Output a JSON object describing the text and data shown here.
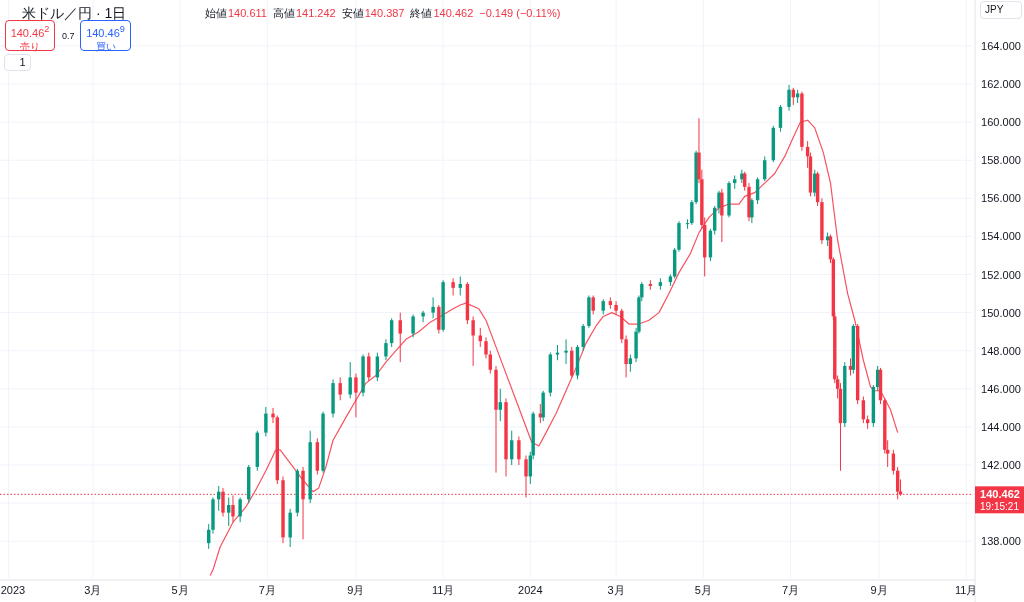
{
  "chart_data": {
    "type": "candlestick",
    "title": "米ドル／円 · 1日",
    "annotations": [
      "始値",
      "140.611",
      "高値",
      "141.242",
      "安値",
      "140.387",
      "終値",
      "140.462",
      "−0.149 (−0.11%)",
      "140.46$^{2}$",
      "売り",
      "0.7",
      "140.46$^{9}$",
      "買い",
      "1",
      "JPY",
      "19:15:21"
    ],
    "x": [
      "2023-05-21",
      "2023-05-24",
      "2023-05-28",
      "2023-05-31",
      "2023-06-04",
      "2023-06-07",
      "2023-06-12",
      "2023-06-18",
      "2023-06-24",
      "2023-06-30",
      "2023-07-05",
      "2023-07-08",
      "2023-07-12",
      "2023-07-17",
      "2023-07-22",
      "2023-07-26",
      "2023-07-31",
      "2023-08-05",
      "2023-08-09",
      "2023-08-16",
      "2023-08-21",
      "2023-08-28",
      "2023-09-01",
      "2023-09-06",
      "2023-09-10",
      "2023-09-16",
      "2023-09-22",
      "2023-09-26",
      "2023-10-02",
      "2023-10-11",
      "2023-10-18",
      "2023-10-25",
      "2023-10-29",
      "2023-11-01",
      "2023-11-08",
      "2023-11-13",
      "2023-11-18",
      "2023-11-22",
      "2023-11-27",
      "2023-12-01",
      "2023-12-04",
      "2023-12-08",
      "2023-12-11",
      "2023-12-15",
      "2023-12-19",
      "2023-12-24",
      "2023-12-29",
      "2024-01-01",
      "2024-01-03",
      "2024-01-08",
      "2024-01-10",
      "2024-01-15",
      "2024-01-20",
      "2024-01-26",
      "2024-01-30",
      "2024-02-03",
      "2024-02-07",
      "2024-02-11",
      "2024-02-14",
      "2024-02-21",
      "2024-02-26",
      "2024-03-01",
      "2024-03-05",
      "2024-03-08",
      "2024-03-11",
      "2024-03-15",
      "2024-03-17",
      "2024-03-19",
      "2024-03-25",
      "2024-04-01",
      "2024-04-08",
      "2024-04-11",
      "2024-04-14",
      "2024-04-20",
      "2024-04-23",
      "2024-04-26",
      "2024-04-28",
      "2024-04-30",
      "2024-05-02",
      "2024-05-06",
      "2024-05-09",
      "2024-05-12",
      "2024-05-14",
      "2024-05-19",
      "2024-05-23",
      "2024-05-28",
      "2024-05-30",
      "2024-06-02",
      "2024-06-04",
      "2024-06-08",
      "2024-06-13",
      "2024-06-19",
      "2024-06-24",
      "2024-06-30",
      "2024-07-03",
      "2024-07-06",
      "2024-07-09",
      "2024-07-13",
      "2024-07-15",
      "2024-07-18",
      "2024-07-20",
      "2024-07-23",
      "2024-07-27",
      "2024-07-29",
      "2024-07-31",
      "2024-08-01",
      "2024-08-03",
      "2024-08-05",
      "2024-08-08",
      "2024-08-12",
      "2024-08-14",
      "2024-08-17",
      "2024-08-21",
      "2024-08-24",
      "2024-08-28",
      "2024-08-31",
      "2024-09-02",
      "2024-09-05",
      "2024-09-07",
      "2024-09-11",
      "2024-09-14",
      "2024-09-16"
    ],
    "ohlc": [
      [
        137.9,
        138.9,
        137.6,
        138.6
      ],
      [
        138.6,
        140.3,
        138.4,
        140.2
      ],
      [
        140.2,
        140.9,
        139.6,
        140.6
      ],
      [
        140.6,
        140.8,
        139.3,
        139.5
      ],
      [
        139.5,
        140.3,
        138.8,
        139.9
      ],
      [
        139.9,
        140.4,
        139.0,
        139.3
      ],
      [
        139.3,
        140.3,
        139.0,
        140.2
      ],
      [
        140.2,
        142.0,
        140.0,
        141.9
      ],
      [
        141.9,
        143.8,
        141.7,
        143.7
      ],
      [
        143.7,
        145.05,
        143.5,
        144.7
      ],
      [
        144.7,
        145.0,
        144.2,
        144.5
      ],
      [
        144.5,
        144.6,
        141.0,
        141.2
      ],
      [
        141.2,
        141.4,
        137.9,
        138.2
      ],
      [
        138.2,
        139.7,
        137.7,
        139.5
      ],
      [
        139.5,
        141.8,
        139.3,
        141.7
      ],
      [
        141.7,
        141.9,
        138.1,
        140.2
      ],
      [
        140.2,
        143.8,
        140.0,
        143.2
      ],
      [
        143.2,
        143.4,
        141.5,
        141.7
      ],
      [
        141.7,
        144.8,
        141.6,
        144.7
      ],
      [
        144.7,
        146.5,
        144.5,
        146.3
      ],
      [
        146.3,
        146.6,
        145.4,
        145.7
      ],
      [
        145.7,
        147.4,
        145.5,
        146.6
      ],
      [
        146.6,
        146.8,
        144.5,
        145.8
      ],
      [
        145.8,
        147.8,
        145.6,
        147.7
      ],
      [
        147.7,
        147.9,
        146.4,
        146.6
      ],
      [
        146.6,
        147.9,
        146.4,
        147.7
      ],
      [
        147.7,
        148.6,
        147.5,
        148.4
      ],
      [
        148.4,
        149.7,
        148.2,
        149.6
      ],
      [
        149.6,
        150.0,
        147.4,
        148.9
      ],
      [
        148.9,
        149.9,
        148.7,
        149.8
      ],
      [
        149.8,
        150.1,
        149.5,
        150.0
      ],
      [
        150.0,
        150.8,
        149.7,
        150.3
      ],
      [
        150.3,
        150.4,
        148.9,
        149.1
      ],
      [
        149.1,
        151.7,
        149.0,
        151.6
      ],
      [
        151.6,
        151.8,
        150.9,
        151.3
      ],
      [
        151.3,
        151.9,
        150.9,
        151.5
      ],
      [
        151.5,
        151.6,
        149.4,
        149.6
      ],
      [
        149.6,
        149.8,
        147.2,
        148.8
      ],
      [
        148.8,
        149.2,
        148.2,
        148.5
      ],
      [
        148.5,
        148.7,
        147.6,
        147.8
      ],
      [
        147.8,
        148.0,
        146.8,
        147.0
      ],
      [
        147.0,
        147.2,
        141.6,
        144.9
      ],
      [
        144.9,
        146.0,
        144.3,
        145.3
      ],
      [
        145.3,
        145.5,
        141.4,
        142.3
      ],
      [
        142.3,
        143.8,
        142.0,
        143.3
      ],
      [
        143.3,
        143.5,
        142.0,
        142.3
      ],
      [
        142.3,
        142.5,
        140.3,
        141.4
      ],
      [
        141.4,
        142.7,
        141.0,
        142.5
      ],
      [
        142.5,
        144.8,
        142.3,
        144.7
      ],
      [
        144.7,
        145.2,
        144.2,
        144.5
      ],
      [
        144.5,
        145.9,
        144.3,
        145.8
      ],
      [
        145.8,
        147.9,
        145.6,
        147.8
      ],
      [
        147.8,
        148.3,
        147.5,
        147.9
      ],
      [
        147.9,
        148.6,
        147.3,
        148.0
      ],
      [
        148.0,
        148.2,
        146.6,
        146.7
      ],
      [
        146.7,
        148.3,
        146.5,
        148.2
      ],
      [
        148.2,
        149.4,
        148.0,
        149.3
      ],
      [
        149.3,
        150.9,
        149.2,
        150.8
      ],
      [
        150.8,
        150.9,
        149.9,
        150.1
      ],
      [
        150.1,
        150.7,
        149.9,
        150.6
      ],
      [
        150.6,
        150.8,
        150.2,
        150.4
      ],
      [
        150.4,
        150.6,
        149.9,
        150.1
      ],
      [
        150.1,
        150.2,
        148.4,
        148.6
      ],
      [
        148.6,
        148.8,
        146.6,
        147.3
      ],
      [
        147.3,
        147.8,
        146.9,
        147.6
      ],
      [
        147.6,
        149.2,
        147.4,
        149.0
      ],
      [
        149.0,
        150.9,
        148.9,
        150.8
      ],
      [
        150.8,
        151.6,
        150.6,
        151.5
      ],
      [
        151.5,
        151.7,
        151.2,
        151.4
      ],
      [
        151.4,
        151.8,
        151.2,
        151.6
      ],
      [
        151.6,
        152.0,
        151.4,
        151.9
      ],
      [
        151.9,
        153.4,
        151.8,
        153.3
      ],
      [
        153.3,
        154.8,
        153.2,
        154.7
      ],
      [
        154.7,
        154.9,
        154.4,
        154.7
      ],
      [
        154.7,
        155.9,
        154.6,
        155.8
      ],
      [
        155.8,
        158.5,
        155.7,
        158.4
      ],
      [
        158.4,
        160.2,
        156.8,
        157.0
      ],
      [
        157.0,
        157.5,
        154.4,
        154.6
      ],
      [
        154.6,
        155.0,
        151.9,
        152.9
      ],
      [
        152.9,
        154.4,
        152.7,
        154.3
      ],
      [
        154.3,
        155.6,
        154.1,
        155.5
      ],
      [
        155.5,
        156.4,
        155.2,
        156.3
      ],
      [
        156.3,
        156.5,
        153.7,
        155.1
      ],
      [
        155.1,
        156.9,
        155.0,
        156.8
      ],
      [
        156.8,
        157.2,
        156.5,
        157.0
      ],
      [
        157.0,
        157.5,
        156.8,
        157.3
      ],
      [
        157.3,
        157.4,
        156.4,
        156.6
      ],
      [
        156.6,
        156.8,
        154.8,
        155.0
      ],
      [
        155.0,
        156.0,
        154.7,
        155.9
      ],
      [
        155.9,
        157.1,
        155.7,
        157.0
      ],
      [
        157.0,
        158.2,
        156.9,
        158.0
      ],
      [
        158.0,
        159.8,
        157.9,
        159.7
      ],
      [
        159.7,
        160.9,
        159.5,
        160.8
      ],
      [
        160.8,
        161.95,
        160.6,
        161.7
      ],
      [
        161.7,
        161.8,
        160.9,
        161.3
      ],
      [
        161.3,
        161.7,
        161.0,
        161.5
      ],
      [
        161.5,
        161.6,
        158.5,
        158.7
      ],
      [
        158.7,
        159.0,
        157.6,
        158.2
      ],
      [
        158.2,
        158.4,
        156.1,
        156.3
      ],
      [
        156.3,
        157.5,
        156.1,
        157.3
      ],
      [
        157.3,
        157.4,
        155.6,
        155.8
      ],
      [
        155.8,
        156.0,
        153.6,
        153.8
      ],
      [
        153.8,
        154.2,
        153.5,
        154.0
      ],
      [
        154.0,
        154.1,
        152.6,
        152.8
      ],
      [
        152.8,
        152.9,
        149.6,
        149.8
      ],
      [
        149.8,
        150.0,
        146.3,
        146.5
      ],
      [
        146.5,
        146.7,
        145.5,
        146.0
      ],
      [
        146.0,
        146.3,
        141.7,
        144.2
      ],
      [
        144.2,
        147.4,
        144.0,
        147.2
      ],
      [
        147.2,
        147.6,
        146.7,
        147.0
      ],
      [
        147.0,
        149.4,
        146.8,
        149.3
      ],
      [
        149.3,
        149.4,
        145.2,
        145.4
      ],
      [
        145.4,
        145.6,
        144.2,
        144.4
      ],
      [
        144.4,
        144.6,
        143.9,
        144.2
      ],
      [
        144.2,
        146.2,
        144.0,
        146.1
      ],
      [
        146.1,
        147.2,
        145.9,
        147.0
      ],
      [
        147.0,
        147.1,
        145.2,
        145.4
      ],
      [
        145.4,
        145.5,
        142.6,
        142.8
      ],
      [
        142.8,
        143.3,
        141.9,
        142.6
      ],
      [
        142.6,
        142.8,
        141.5,
        141.7
      ],
      [
        141.7,
        141.9,
        140.2,
        140.6
      ],
      [
        140.611,
        141.242,
        140.387,
        140.462
      ]
    ],
    "series": [
      {
        "type": "line",
        "color": "#f7525f",
        "x": [
          "2023-05-22",
          "2023-05-24",
          "2023-05-29",
          "2023-06-07",
          "2023-06-16",
          "2023-06-23",
          "2023-06-30",
          "2023-07-07",
          "2023-07-10",
          "2023-07-19",
          "2023-07-26",
          "2023-08-02",
          "2023-08-06",
          "2023-08-11",
          "2023-08-16",
          "2023-08-25",
          "2023-09-01",
          "2023-09-08",
          "2023-09-15",
          "2023-09-22",
          "2023-09-29",
          "2023-10-06",
          "2023-10-15",
          "2023-10-23",
          "2023-10-30",
          "2023-11-08",
          "2023-11-13",
          "2023-11-17",
          "2023-11-26",
          "2023-12-01",
          "2023-12-08",
          "2023-12-15",
          "2023-12-22",
          "2023-12-29",
          "2024-01-02",
          "2024-01-07",
          "2024-01-12",
          "2024-01-19",
          "2024-01-26",
          "2024-02-02",
          "2024-02-09",
          "2024-02-16",
          "2024-02-21",
          "2024-02-27",
          "2024-03-04",
          "2024-03-10",
          "2024-03-17",
          "2024-03-24",
          "2024-03-31",
          "2024-04-07",
          "2024-04-14",
          "2024-04-22",
          "2024-04-28",
          "2024-05-05",
          "2024-05-12",
          "2024-05-19",
          "2024-05-26",
          "2024-05-30",
          "2024-06-06",
          "2024-06-13",
          "2024-06-20",
          "2024-06-27",
          "2024-07-03",
          "2024-07-08",
          "2024-07-13",
          "2024-07-18",
          "2024-07-24",
          "2024-07-29",
          "2024-08-03",
          "2024-08-10",
          "2024-08-15",
          "2024-08-21",
          "2024-08-26",
          "2024-08-29",
          "2024-09-02",
          "2024-09-09",
          "2024-09-14"
        ],
        "values": [
          136.2,
          136.5,
          137.7,
          139.0,
          139.8,
          140.7,
          141.7,
          142.8,
          142.8,
          141.9,
          141.2,
          140.6,
          140.8,
          141.9,
          143.3,
          144.5,
          145.4,
          146.3,
          146.7,
          147.4,
          148.0,
          148.6,
          149.0,
          149.5,
          149.8,
          150.2,
          150.4,
          150.5,
          150.2,
          149.6,
          148.2,
          146.8,
          145.4,
          144.0,
          143.2,
          143.0,
          143.7,
          144.7,
          145.9,
          147.1,
          148.4,
          149.3,
          149.8,
          150.0,
          149.8,
          149.4,
          149.4,
          149.6,
          150.0,
          151.0,
          152.1,
          153.1,
          154.2,
          155.0,
          155.5,
          155.7,
          155.7,
          156.1,
          156.3,
          156.8,
          157.3,
          158.2,
          159.2,
          160.0,
          160.1,
          159.7,
          158.4,
          156.8,
          153.8,
          151.0,
          149.6,
          147.5,
          146.1,
          145.9,
          145.9,
          144.9,
          143.7
        ]
      }
    ],
    "xlim": [
      "2022-12-26",
      "2024-11-05"
    ],
    "ylim": [
      136.07,
      166.41
    ],
    "xticks": [
      {
        "value": "2023-01-01",
        "label": "2023"
      },
      {
        "value": "2023-03-01",
        "label": "3月"
      },
      {
        "value": "2023-05-01",
        "label": "5月"
      },
      {
        "value": "2023-07-01",
        "label": "7月"
      },
      {
        "value": "2023-09-01",
        "label": "9月"
      },
      {
        "value": "2023-11-01",
        "label": "11月"
      },
      {
        "value": "2024-01-01",
        "label": "2024"
      },
      {
        "value": "2024-03-01",
        "label": "3月"
      },
      {
        "value": "2024-05-01",
        "label": "5月"
      },
      {
        "value": "2024-07-01",
        "label": "7月"
      },
      {
        "value": "2024-09-01",
        "label": "9月"
      },
      {
        "value": "2024-11-01",
        "label": "11月"
      }
    ],
    "yticks": [
      {
        "value": 138,
        "label": "138.000"
      },
      {
        "value": 140,
        "label": null
      },
      {
        "value": 142,
        "label": "142.000"
      },
      {
        "value": 144,
        "label": "144.000"
      },
      {
        "value": 146,
        "label": "146.000"
      },
      {
        "value": 148,
        "label": "148.000"
      },
      {
        "value": 150,
        "label": "150.000"
      },
      {
        "value": 152,
        "label": "152.000"
      },
      {
        "value": 154,
        "label": "154.000"
      },
      {
        "value": 156,
        "label": "156.000"
      },
      {
        "value": 158,
        "label": "158.000"
      },
      {
        "value": 160,
        "label": "160.000"
      },
      {
        "value": 162,
        "label": "162.000"
      },
      {
        "value": 164,
        "label": "164.000"
      }
    ],
    "grid": true,
    "ref_lines": [
      {
        "axis": "y",
        "value": 140.462,
        "label": "140.462",
        "color": "#f23645",
        "line_style": "dotted"
      }
    ]
  }
}
